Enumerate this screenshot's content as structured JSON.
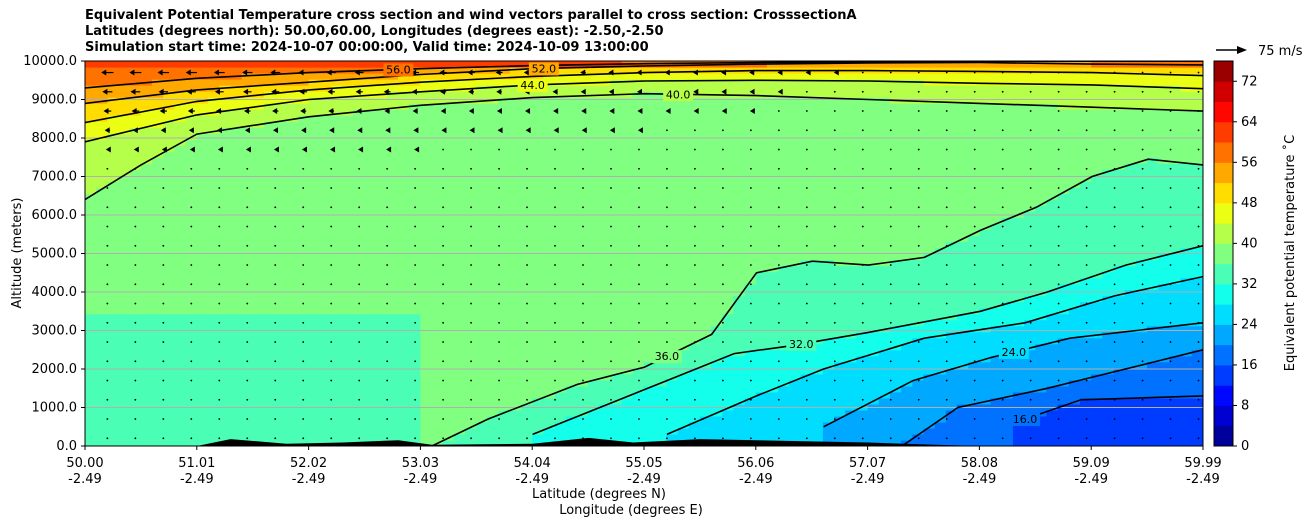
{
  "titles": [
    "Equivalent Potential Temperature cross section and wind vectors parallel to cross section: CrosssectionA",
    "Latitudes (degrees north): 50.00,60.00, Longitudes (degrees east): -2.50,-2.50",
    "Simulation start time: 2024-10-07 00:00:00, Valid time: 2024-10-09 13:00:00"
  ],
  "chart_data": {
    "type": "heatmap",
    "ylabel": "Altitude (meters)",
    "xlabel_lines": [
      "Latitude (degrees N)",
      "Longitude (degrees E)"
    ],
    "x_ticks_lat": [
      "50.00",
      "51.01",
      "52.02",
      "53.03",
      "54.04",
      "55.05",
      "56.06",
      "57.07",
      "58.08",
      "59.09",
      "59.99"
    ],
    "x_ticks_lon": [
      "-2.49",
      "-2.49",
      "-2.49",
      "-2.49",
      "-2.49",
      "-2.49",
      "-2.49",
      "-2.49",
      "-2.49",
      "-2.49",
      "-2.49"
    ],
    "y_ticks": [
      "0.0",
      "1000.0",
      "2000.0",
      "3000.0",
      "4000.0",
      "5000.0",
      "6000.0",
      "7000.0",
      "8000.0",
      "9000.0",
      "10000.0"
    ],
    "ylim": [
      0,
      10000
    ],
    "grid": "horizontal",
    "colorbar": {
      "label": "Equivalent potential temperature ˚C",
      "range": [
        0,
        76
      ],
      "ticks": [
        "0",
        "8",
        "16",
        "24",
        "32",
        "40",
        "48",
        "56",
        "64",
        "72"
      ],
      "colormap": "jet"
    },
    "wind_key": {
      "label": "75 m/s"
    },
    "contour_labels": [
      "56.0",
      "52.0",
      "44.0",
      "40.0",
      "36.0",
      "32.0",
      "24.0",
      "16.0"
    ],
    "contour_lines": [
      {
        "level": 56,
        "points": [
          [
            50.0,
            9300
          ],
          [
            51.0,
            9550
          ],
          [
            52.0,
            9700
          ],
          [
            53.0,
            9800
          ],
          [
            54.0,
            9880
          ],
          [
            55.0,
            9930
          ],
          [
            56.0,
            9960
          ],
          [
            57.0,
            9980
          ],
          [
            58.0,
            9990
          ],
          [
            59.0,
            9995
          ],
          [
            59.99,
            9995
          ]
        ]
      },
      {
        "level": 52,
        "points": [
          [
            50.0,
            8900
          ],
          [
            51.0,
            9250
          ],
          [
            52.0,
            9450
          ],
          [
            53.0,
            9650
          ],
          [
            54.0,
            9800
          ],
          [
            55.0,
            9870
          ],
          [
            56.0,
            9920
          ],
          [
            57.0,
            9950
          ],
          [
            58.0,
            9960
          ],
          [
            59.0,
            9920
          ],
          [
            59.99,
            9900
          ]
        ]
      },
      {
        "level": 48,
        "points": [
          [
            50.0,
            8400
          ],
          [
            51.0,
            8950
          ],
          [
            52.0,
            9250
          ],
          [
            53.0,
            9450
          ],
          [
            54.0,
            9600
          ],
          [
            55.0,
            9700
          ],
          [
            56.0,
            9750
          ],
          [
            57.0,
            9750
          ],
          [
            58.0,
            9730
          ],
          [
            59.0,
            9700
          ],
          [
            59.99,
            9620
          ]
        ]
      },
      {
        "level": 44,
        "points": [
          [
            50.0,
            7900
          ],
          [
            51.0,
            8600
          ],
          [
            52.0,
            9000
          ],
          [
            53.0,
            9200
          ],
          [
            54.0,
            9380
          ],
          [
            55.0,
            9480
          ],
          [
            56.0,
            9500
          ],
          [
            57.0,
            9480
          ],
          [
            58.0,
            9420
          ],
          [
            59.0,
            9380
          ],
          [
            59.99,
            9280
          ]
        ]
      },
      {
        "level": 40,
        "points": [
          [
            50.0,
            6400
          ],
          [
            50.5,
            7300
          ],
          [
            51.0,
            8100
          ],
          [
            52.0,
            8550
          ],
          [
            53.0,
            8850
          ],
          [
            54.0,
            9050
          ],
          [
            55.0,
            9150
          ],
          [
            56.0,
            9100
          ],
          [
            57.0,
            9000
          ],
          [
            58.0,
            8900
          ],
          [
            59.0,
            8800
          ],
          [
            59.99,
            8700
          ]
        ]
      },
      {
        "level": 36,
        "points": [
          [
            53.1,
            0
          ],
          [
            53.6,
            700
          ],
          [
            54.4,
            1600
          ],
          [
            55.0,
            2050
          ],
          [
            55.6,
            2900
          ],
          [
            56.0,
            4500
          ],
          [
            56.5,
            4800
          ],
          [
            57.0,
            4700
          ],
          [
            57.5,
            4900
          ],
          [
            58.0,
            5600
          ],
          [
            58.5,
            6200
          ],
          [
            59.0,
            7000
          ],
          [
            59.5,
            7450
          ],
          [
            59.99,
            7300
          ]
        ]
      },
      {
        "level": 32,
        "points": [
          [
            54.0,
            300
          ],
          [
            54.6,
            1000
          ],
          [
            55.2,
            1700
          ],
          [
            55.8,
            2400
          ],
          [
            56.3,
            2600
          ],
          [
            57.0,
            2950
          ],
          [
            58.0,
            3500
          ],
          [
            58.6,
            4000
          ],
          [
            59.3,
            4700
          ],
          [
            59.99,
            5200
          ]
        ]
      },
      {
        "level": 28,
        "points": [
          [
            55.2,
            300
          ],
          [
            56.0,
            1300
          ],
          [
            56.6,
            2000
          ],
          [
            57.5,
            2800
          ],
          [
            58.4,
            3200
          ],
          [
            59.2,
            3900
          ],
          [
            59.99,
            4400
          ]
        ]
      },
      {
        "level": 24,
        "points": [
          [
            56.6,
            500
          ],
          [
            57.4,
            1700
          ],
          [
            58.1,
            2300
          ],
          [
            58.8,
            2800
          ],
          [
            59.99,
            3200
          ]
        ]
      },
      {
        "level": 20,
        "points": [
          [
            57.3,
            0
          ],
          [
            57.8,
            1000
          ],
          [
            58.6,
            1500
          ],
          [
            59.99,
            2500
          ]
        ]
      },
      {
        "level": 16,
        "points": [
          [
            58.3,
            600
          ],
          [
            58.9,
            1200
          ],
          [
            59.99,
            1300
          ]
        ]
      }
    ]
  }
}
